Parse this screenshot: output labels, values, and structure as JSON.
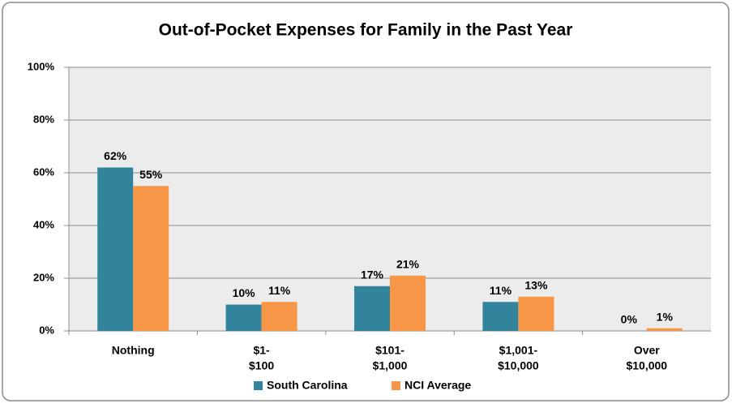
{
  "chart_data": {
    "type": "bar",
    "title": "Out-of-Pocket Expenses for Family in the Past Year",
    "categories": [
      [
        "Nothing"
      ],
      [
        "$1-",
        "$100"
      ],
      [
        "$101-",
        "$1,000"
      ],
      [
        "$1,001-",
        "$10,000"
      ],
      [
        "Over",
        "$10,000"
      ]
    ],
    "series": [
      {
        "name": "South Carolina",
        "color": "#31849b",
        "values": [
          62,
          10,
          17,
          11,
          0
        ],
        "value_labels": [
          "62%",
          "10%",
          "17%",
          "11%",
          "0%"
        ]
      },
      {
        "name": "NCI Average",
        "color": "#f79646",
        "values": [
          55,
          11,
          21,
          13,
          1
        ],
        "value_labels": [
          "55%",
          "11%",
          "21%",
          "13%",
          "1%"
        ]
      }
    ],
    "ylim": [
      0,
      100
    ],
    "yticks": [
      {
        "value": 0,
        "label": "0%"
      },
      {
        "value": 20,
        "label": "20%"
      },
      {
        "value": 40,
        "label": "40%"
      },
      {
        "value": 60,
        "label": "60%"
      },
      {
        "value": 80,
        "label": "80%"
      },
      {
        "value": 100,
        "label": "100%"
      }
    ],
    "grid": true,
    "legend": "bottom"
  }
}
